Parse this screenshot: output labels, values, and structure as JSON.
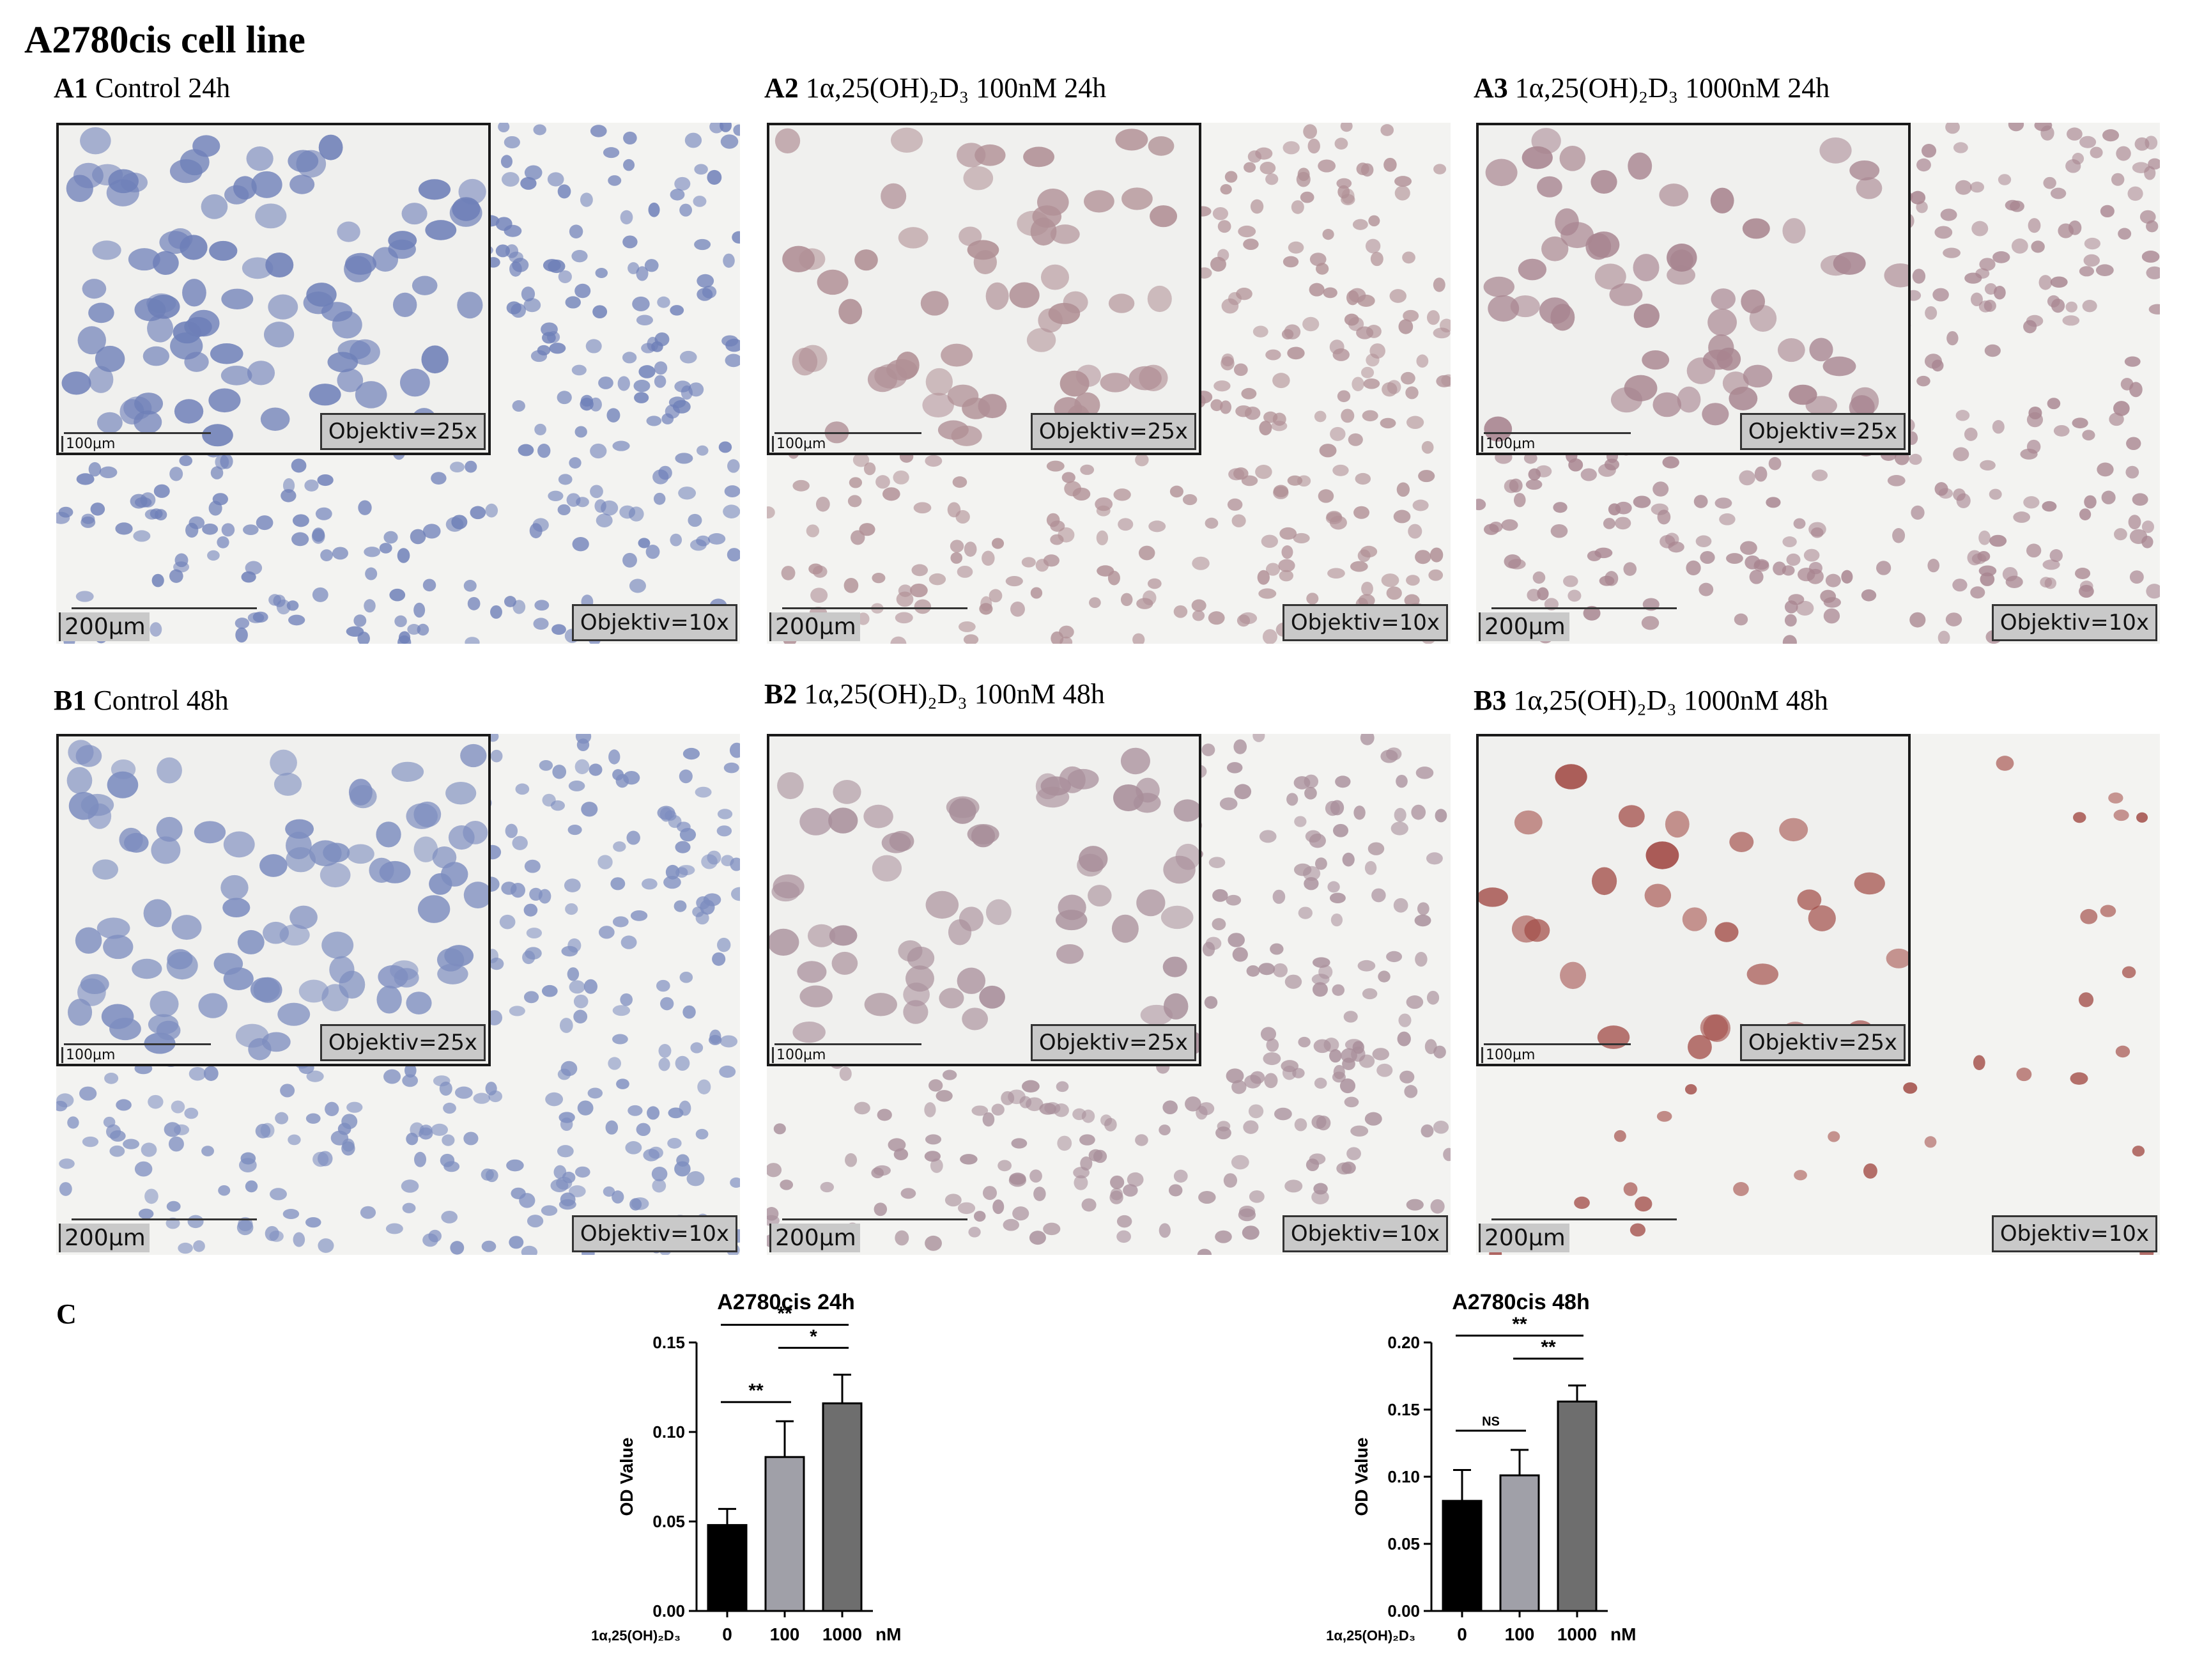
{
  "figure_title": "A2780cis cell line",
  "panels": [
    {
      "id": "A1",
      "label": "Control 24h",
      "scale_outer": "200μm",
      "scale_inset": "100μm",
      "objective_outer": "Objektiv=10x",
      "objective_inset": "Objektiv=25x",
      "stain": "#6e7fb8"
    },
    {
      "id": "A2",
      "label": "1α,25(OH)₂D₃  100nM 24h",
      "scale_outer": "200μm",
      "scale_inset": "100μm",
      "objective_outer": "Objektiv=10x",
      "objective_inset": "Objektiv=25x",
      "stain": "#b08f95"
    },
    {
      "id": "A3",
      "label": "1α,25(OH)₂D₃  1000nM 24h",
      "scale_outer": "200μm",
      "scale_inset": "100μm",
      "objective_outer": "Objektiv=10x",
      "objective_inset": "Objektiv=25x",
      "stain": "#a88590"
    },
    {
      "id": "B1",
      "label": "Control 48h",
      "scale_outer": "200μm",
      "scale_inset": "100μm",
      "objective_outer": "Objektiv=10x",
      "objective_inset": "Objektiv=25x",
      "stain": "#7d8dbf"
    },
    {
      "id": "B2",
      "label": "1α,25(OH)₂D₃  100nM 48h",
      "scale_outer": "200μm",
      "scale_inset": "100μm",
      "objective_outer": "Objektiv=10x",
      "objective_inset": "Objektiv=25x",
      "stain": "#a88e9a"
    },
    {
      "id": "B3",
      "label": "1α,25(OH)₂D₃  1000nM 48h",
      "scale_outer": "200μm",
      "scale_inset": "100μm",
      "objective_outer": "Objektiv=10x",
      "objective_inset": "Objektiv=25x",
      "stain": "#a14a45"
    }
  ],
  "panel_c_label": "C",
  "chart_data": [
    {
      "type": "bar",
      "title": "A2780cis 24h",
      "ylabel": "OD Value",
      "xlabel": "1α,25(OH)₂D₃",
      "x_unit": "nM",
      "categories": [
        "0",
        "100",
        "1000"
      ],
      "values": [
        0.048,
        0.086,
        0.116
      ],
      "errors": [
        0.009,
        0.02,
        0.016
      ],
      "bar_colors": [
        "#000000",
        "#a0a0a8",
        "#6e6e6e"
      ],
      "ylim": [
        0,
        0.15
      ],
      "yticks": [
        "0.00",
        "0.05",
        "0.10",
        "0.15"
      ],
      "significance": [
        {
          "from": 0,
          "to": 1,
          "label": "**"
        },
        {
          "from": 0,
          "to": 2,
          "label": "**"
        },
        {
          "from": 1,
          "to": 2,
          "label": "*"
        }
      ]
    },
    {
      "type": "bar",
      "title": "A2780cis 48h",
      "ylabel": "OD Value",
      "xlabel": "1α,25(OH)₂D₃",
      "x_unit": "nM",
      "categories": [
        "0",
        "100",
        "1000"
      ],
      "values": [
        0.082,
        0.101,
        0.156
      ],
      "errors": [
        0.023,
        0.019,
        0.012
      ],
      "bar_colors": [
        "#000000",
        "#a0a0a8",
        "#6e6e6e"
      ],
      "ylim": [
        0,
        0.2
      ],
      "yticks": [
        "0.00",
        "0.05",
        "0.10",
        "0.15",
        "0.20"
      ],
      "significance": [
        {
          "from": 0,
          "to": 1,
          "label": "NS"
        },
        {
          "from": 0,
          "to": 2,
          "label": "**"
        },
        {
          "from": 1,
          "to": 2,
          "label": "**"
        }
      ]
    }
  ]
}
